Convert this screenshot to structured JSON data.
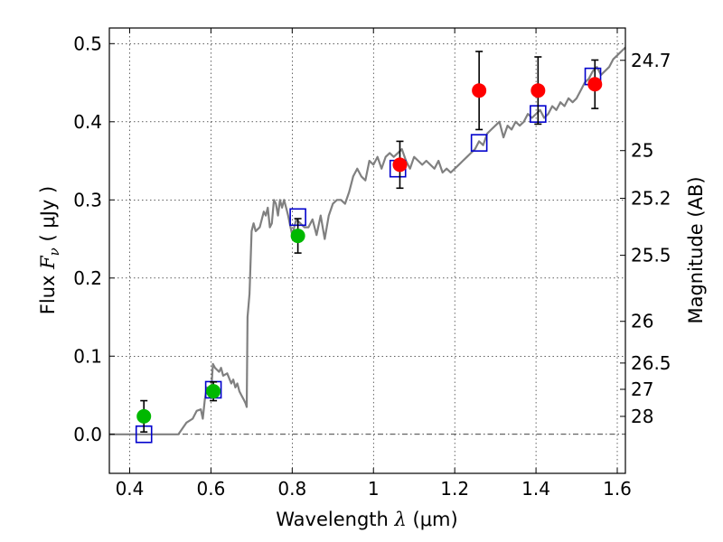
{
  "chart_data": {
    "type": "scatter",
    "xlabel": {
      "prefix": "Wavelength  ",
      "symbol": "λ",
      "suffix": " (μm)"
    },
    "ylabel": {
      "prefix": "Flux  ",
      "symbol": "F",
      "subscript": "ν",
      "suffix": "  ( μJy )"
    },
    "y2label": "Magnitude (AB)",
    "xlim": [
      0.35,
      1.62
    ],
    "ylim": [
      -0.05,
      0.52
    ],
    "grid": true,
    "x_ticks": [
      {
        "value": 0.4,
        "label": "0.4"
      },
      {
        "value": 0.6,
        "label": "0.6"
      },
      {
        "value": 0.8,
        "label": "0.8"
      },
      {
        "value": 1.0,
        "label": "1"
      },
      {
        "value": 1.2,
        "label": "1.2"
      },
      {
        "value": 1.4,
        "label": "1.4"
      },
      {
        "value": 1.6,
        "label": "1.6"
      }
    ],
    "y_ticks": [
      {
        "value": 0.0,
        "label": "0.0"
      },
      {
        "value": 0.1,
        "label": "0.1"
      },
      {
        "value": 0.2,
        "label": "0.2"
      },
      {
        "value": 0.3,
        "label": "0.3"
      },
      {
        "value": 0.4,
        "label": "0.4"
      },
      {
        "value": 0.5,
        "label": "0.5"
      }
    ],
    "y2_ticks": [
      {
        "value": 24.7,
        "label": "24.7"
      },
      {
        "value": 25.0,
        "label": "25"
      },
      {
        "value": 25.2,
        "label": "25.2"
      },
      {
        "value": 25.5,
        "label": "25.5"
      },
      {
        "value": 26.0,
        "label": "26"
      },
      {
        "value": 26.5,
        "label": "26.5"
      },
      {
        "value": 27.0,
        "label": "27"
      },
      {
        "value": 28.0,
        "label": "28"
      }
    ],
    "series": [
      {
        "kind": "model_spectrum",
        "color": "#808080",
        "x": [
          0.35,
          0.52,
          0.54,
          0.555,
          0.565,
          0.575,
          0.58,
          0.585,
          0.59,
          0.6,
          0.605,
          0.61,
          0.62,
          0.625,
          0.63,
          0.64,
          0.65,
          0.655,
          0.66,
          0.665,
          0.67,
          0.675,
          0.68,
          0.685,
          0.688,
          0.69,
          0.695,
          0.7,
          0.705,
          0.71,
          0.72,
          0.73,
          0.735,
          0.74,
          0.745,
          0.75,
          0.755,
          0.76,
          0.765,
          0.77,
          0.775,
          0.78,
          0.785,
          0.79,
          0.8,
          0.81,
          0.82,
          0.83,
          0.84,
          0.85,
          0.86,
          0.87,
          0.88,
          0.89,
          0.9,
          0.91,
          0.92,
          0.93,
          0.94,
          0.95,
          0.96,
          0.97,
          0.98,
          0.99,
          1.0,
          1.01,
          1.02,
          1.03,
          1.04,
          1.05,
          1.06,
          1.07,
          1.08,
          1.09,
          1.1,
          1.11,
          1.12,
          1.13,
          1.14,
          1.15,
          1.16,
          1.17,
          1.18,
          1.19,
          1.2,
          1.21,
          1.22,
          1.23,
          1.24,
          1.25,
          1.26,
          1.27,
          1.28,
          1.29,
          1.3,
          1.31,
          1.32,
          1.33,
          1.34,
          1.35,
          1.36,
          1.37,
          1.38,
          1.39,
          1.4,
          1.41,
          1.42,
          1.43,
          1.44,
          1.45,
          1.46,
          1.47,
          1.48,
          1.49,
          1.5,
          1.51,
          1.52,
          1.53,
          1.54,
          1.55,
          1.56,
          1.57,
          1.58,
          1.59,
          1.6,
          1.61,
          1.62
        ],
        "y": [
          0.0,
          0.0,
          0.015,
          0.02,
          0.03,
          0.032,
          0.02,
          0.045,
          0.06,
          0.05,
          0.09,
          0.085,
          0.08,
          0.085,
          0.075,
          0.078,
          0.065,
          0.07,
          0.06,
          0.065,
          0.055,
          0.05,
          0.045,
          0.04,
          0.035,
          0.15,
          0.18,
          0.26,
          0.27,
          0.26,
          0.265,
          0.285,
          0.28,
          0.29,
          0.265,
          0.27,
          0.3,
          0.295,
          0.28,
          0.3,
          0.29,
          0.3,
          0.29,
          0.28,
          0.255,
          0.275,
          0.27,
          0.265,
          0.265,
          0.275,
          0.255,
          0.28,
          0.25,
          0.28,
          0.295,
          0.3,
          0.3,
          0.295,
          0.31,
          0.33,
          0.34,
          0.33,
          0.325,
          0.35,
          0.345,
          0.355,
          0.34,
          0.355,
          0.36,
          0.355,
          0.36,
          0.365,
          0.35,
          0.34,
          0.355,
          0.35,
          0.345,
          0.35,
          0.345,
          0.34,
          0.35,
          0.335,
          0.34,
          0.335,
          0.34,
          0.345,
          0.35,
          0.355,
          0.36,
          0.365,
          0.375,
          0.37,
          0.385,
          0.39,
          0.395,
          0.4,
          0.38,
          0.395,
          0.39,
          0.4,
          0.395,
          0.4,
          0.41,
          0.405,
          0.41,
          0.415,
          0.405,
          0.41,
          0.42,
          0.415,
          0.425,
          0.42,
          0.43,
          0.425,
          0.43,
          0.44,
          0.45,
          0.455,
          0.465,
          0.47,
          0.46,
          0.465,
          0.47,
          0.48,
          0.485,
          0.49,
          0.495
        ]
      },
      {
        "kind": "model_photometry",
        "marker": "open-square",
        "color": "#0000cc",
        "x": [
          0.435,
          0.606,
          0.814,
          1.06,
          1.26,
          1.405,
          1.54
        ],
        "y": [
          0.0,
          0.057,
          0.278,
          0.34,
          0.373,
          0.41,
          0.458
        ]
      },
      {
        "kind": "observed_optical",
        "marker": "filled-circle",
        "color": "#00b800",
        "x": [
          0.435,
          0.606,
          0.814
        ],
        "y": [
          0.023,
          0.055,
          0.254
        ],
        "yerr": [
          0.02,
          0.012,
          0.022
        ]
      },
      {
        "kind": "observed_nir",
        "marker": "filled-circle",
        "color": "#ff0000",
        "x": [
          1.065,
          1.26,
          1.405,
          1.545
        ],
        "y": [
          0.345,
          0.44,
          0.44,
          0.448
        ],
        "yerr": [
          0.03,
          0.05,
          0.043,
          0.031
        ]
      }
    ]
  }
}
